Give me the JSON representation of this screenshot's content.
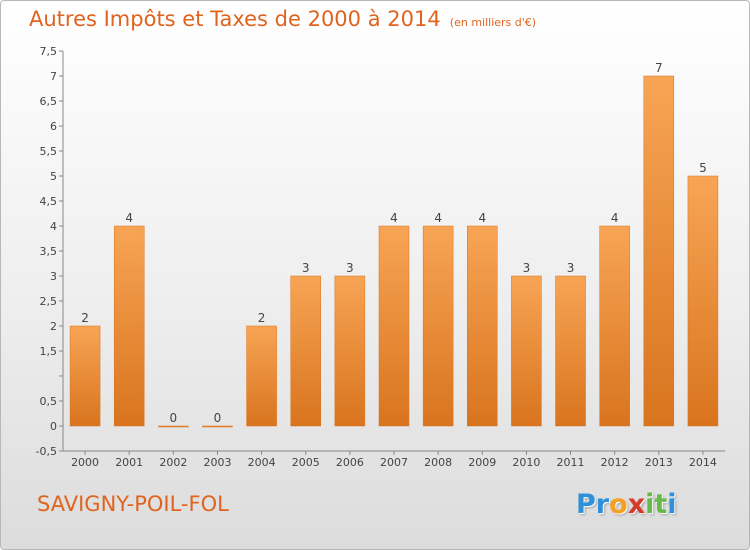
{
  "chart_data": {
    "type": "bar",
    "title": "Autres Impôts et Taxes de 2000 à 2014",
    "subtitle": "(en milliers d'€)",
    "categories": [
      "2000",
      "2001",
      "2002",
      "2003",
      "2004",
      "2005",
      "2006",
      "2007",
      "2008",
      "2009",
      "2010",
      "2011",
      "2012",
      "2013",
      "2014"
    ],
    "values": [
      2,
      4,
      0,
      0,
      2,
      3,
      3,
      4,
      4,
      4,
      3,
      3,
      4,
      7,
      5
    ],
    "data_labels": [
      "2",
      "4",
      "0",
      "0",
      "2",
      "3",
      "3",
      "4",
      "4",
      "4",
      "3",
      "3",
      "4",
      "7",
      "5"
    ],
    "ylim": [
      -0.5,
      7.5
    ],
    "yticks": [
      -0.5,
      0,
      0.5,
      1,
      1.5,
      2,
      2.5,
      3,
      3.5,
      4,
      4.5,
      5,
      5.5,
      6,
      6.5,
      7,
      7.5
    ],
    "ytick_labels": [
      "-0,5",
      "0",
      "0,5",
      "",
      "1,5",
      "2",
      "2,5",
      "3",
      "3,5",
      "4",
      "4,5",
      "5",
      "5,5",
      "6",
      "6,5",
      "7",
      "7,5"
    ],
    "xlabel": "",
    "ylabel": "",
    "grid": false,
    "legend": "none",
    "bar_color": "#f08c35"
  },
  "commune": "SAVIGNY-POIL-FOL",
  "logo": {
    "letters": [
      {
        "char": "P",
        "color": "#2f8fd8"
      },
      {
        "char": "r",
        "color": "#2f8fd8"
      },
      {
        "char": "o",
        "color": "#f5a020"
      },
      {
        "char": "x",
        "color": "#d83a2a"
      },
      {
        "char": "i",
        "color": "#68b84a"
      },
      {
        "char": "t",
        "color": "#68b84a"
      },
      {
        "char": "i",
        "color": "#2f8fd8"
      }
    ]
  }
}
